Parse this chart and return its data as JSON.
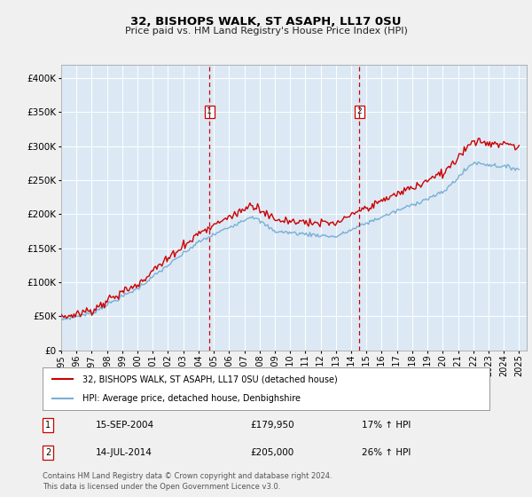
{
  "title": "32, BISHOPS WALK, ST ASAPH, LL17 0SU",
  "subtitle": "Price paid vs. HM Land Registry's House Price Index (HPI)",
  "plot_bg_color": "#dce9f5",
  "fig_bg_color": "#f0f0f0",
  "grid_color": "#ffffff",
  "sale1_date": "15-SEP-2004",
  "sale1_price": 179950,
  "sale1_pct": "17%",
  "sale2_date": "14-JUL-2014",
  "sale2_price": 205000,
  "sale2_pct": "26%",
  "legend_line1": "32, BISHOPS WALK, ST ASAPH, LL17 0SU (detached house)",
  "legend_line2": "HPI: Average price, detached house, Denbighshire",
  "footer": "Contains HM Land Registry data © Crown copyright and database right 2024.\nThis data is licensed under the Open Government Licence v3.0.",
  "red_color": "#cc0000",
  "blue_color": "#7aafd4",
  "ylim_min": 0,
  "ylim_max": 420000,
  "yticks": [
    0,
    50000,
    100000,
    150000,
    200000,
    250000,
    300000,
    350000,
    400000
  ],
  "xmin": 1995,
  "xmax": 2025.5,
  "sale1_yr": 2004.71,
  "sale2_yr": 2014.54
}
